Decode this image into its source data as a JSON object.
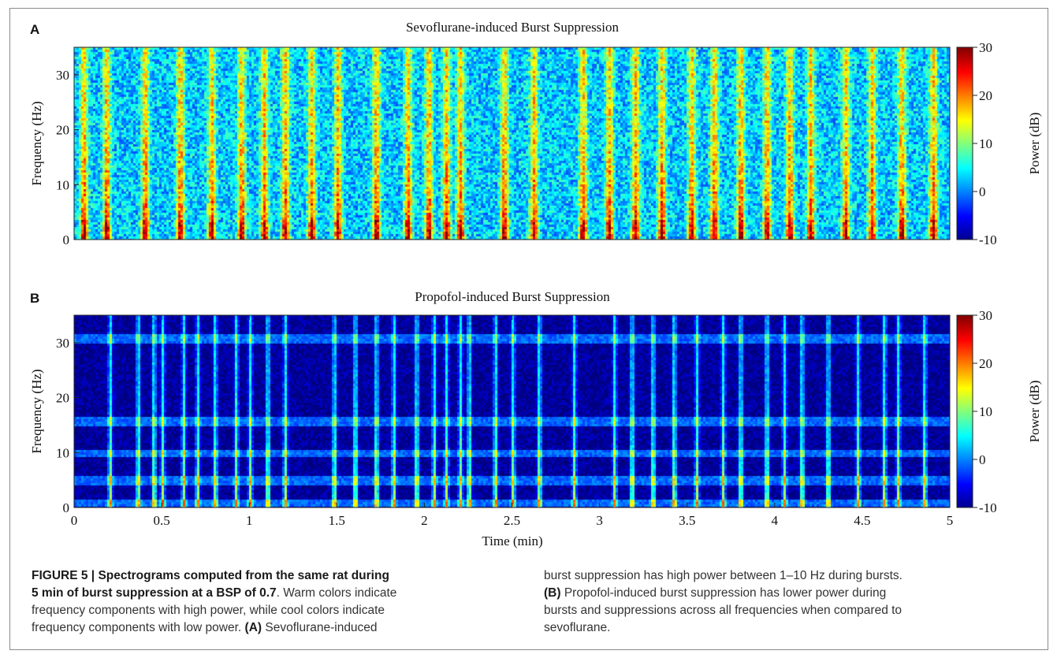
{
  "figure": {
    "panels": [
      {
        "letter": "A",
        "title": "Sevoflurane-induced Burst Suppression",
        "ylabel": "Frequency (Hz)",
        "yticks": [
          "0",
          "10",
          "20",
          "30"
        ],
        "colorbar_label": "Power (dB)",
        "colorbar_ticks": [
          "30",
          "20",
          "10",
          "0",
          "-10"
        ]
      },
      {
        "letter": "B",
        "title": "Propofol-induced Burst Suppression",
        "ylabel": "Frequency (Hz)",
        "yticks": [
          "0",
          "10",
          "20",
          "30"
        ],
        "colorbar_label": "Power (dB)",
        "colorbar_ticks": [
          "30",
          "20",
          "10",
          "0",
          "-10"
        ]
      }
    ],
    "xlabel": "Time (min)",
    "xticks": [
      "0",
      "0.5",
      "1",
      "1.5",
      "2",
      "2.5",
      "3",
      "3.5",
      "4",
      "4.5",
      "5"
    ]
  },
  "chart_data": [
    {
      "type": "heatmap",
      "title": "Sevoflurane-induced Burst Suppression",
      "xlabel": "Time (min)",
      "ylabel": "Frequency (Hz)",
      "xlim": [
        0,
        5
      ],
      "ylim": [
        0,
        35
      ],
      "colorbar": {
        "label": "Power (dB)",
        "range": [
          -10,
          30
        ]
      },
      "burst_times_min": [
        0.05,
        0.18,
        0.4,
        0.6,
        0.78,
        0.95,
        1.08,
        1.2,
        1.35,
        1.5,
        1.72,
        1.9,
        2.02,
        2.12,
        2.2,
        2.45,
        2.62,
        2.9,
        3.05,
        3.2,
        3.35,
        3.52,
        3.65,
        3.8,
        3.95,
        4.08,
        4.2,
        4.4,
        4.55,
        4.72,
        4.9
      ],
      "burst_frequency_range_hz": [
        1,
        10
      ],
      "suppression_level_db": 3,
      "burst_level_db": 26
    },
    {
      "type": "heatmap",
      "title": "Propofol-induced Burst Suppression",
      "xlabel": "Time (min)",
      "ylabel": "Frequency (Hz)",
      "xlim": [
        0,
        5
      ],
      "ylim": [
        0,
        35
      ],
      "colorbar": {
        "label": "Power (dB)",
        "range": [
          -10,
          30
        ]
      },
      "burst_times_min": [
        0.2,
        0.36,
        0.45,
        0.5,
        0.62,
        0.7,
        0.8,
        0.92,
        1.0,
        1.1,
        1.2,
        1.48,
        1.6,
        1.72,
        1.82,
        1.95,
        2.05,
        2.12,
        2.2,
        2.25,
        2.4,
        2.5,
        2.65,
        2.85,
        3.08,
        3.18,
        3.3,
        3.42,
        3.55,
        3.7,
        3.8,
        3.95,
        4.05,
        4.15,
        4.3,
        4.47,
        4.62,
        4.7,
        4.85
      ],
      "horizontal_bands_hz": [
        1,
        5,
        10,
        16,
        31
      ],
      "burst_frequency_range_hz": [
        1,
        10
      ],
      "suppression_level_db": -9,
      "burst_level_db": 14
    }
  ],
  "caption": {
    "label": "FIGURE 5 | ",
    "bold_title": "Spectrograms computed from the same rat during 5 min of burst suppression at a BSP of 0.7",
    "text": ". Warm colors indicate frequency components with high power, while cool colors indicate frequency components with low power. ",
    "a_label": "(A)",
    "a_text": " Sevoflurane-induced burst suppression has high power between 1–10 Hz during bursts. ",
    "b_label": "(B)",
    "b_text": " Propofol-induced burst suppression has lower power during bursts and suppressions across all frequencies when compared to sevoflurane."
  }
}
